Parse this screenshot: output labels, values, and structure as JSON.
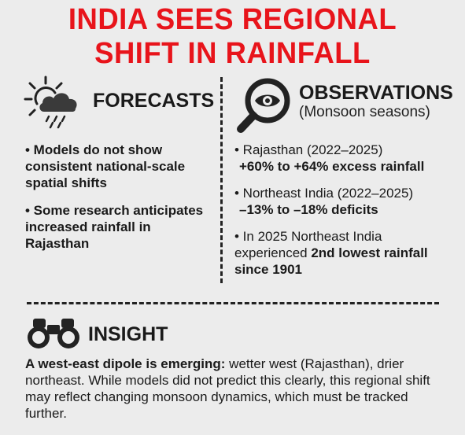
{
  "title": {
    "line1": "INDIA SEES REGIONAL",
    "line2": "SHIFT IN RAINFALL"
  },
  "forecasts": {
    "heading": "FORECASTS",
    "icon": "weather-sun-cloud-rain-icon",
    "items": [
      "• Models do not show consistent national-scale spatial shifts",
      "• Some research anticipates increased rainfall in Rajasthan"
    ]
  },
  "observations": {
    "heading": "OBSERVATIONS",
    "subheading": "(Monsoon seasons)",
    "icon": "magnifying-glass-eye-icon",
    "items": [
      {
        "text": "• Rajasthan (2022–2025)",
        "detail": "+60% to +64% excess rainfall"
      },
      {
        "text": "• Northeast India (2022–2025)",
        "detail": "–13% to –18% deficits"
      },
      {
        "prefix": "• In 2025 Northeast India experienced ",
        "bold": "2nd lowest rainfall since 1901"
      }
    ]
  },
  "insight": {
    "heading": "INSIGHT",
    "icon": "binoculars-icon",
    "lead": "A west-east dipole is emerging:",
    "body": " wetter west (Rajasthan), drier northeast. While models did not predict this clearly, this regional shift may reflect changing monsoon dynamics, which must be tracked further."
  },
  "colors": {
    "accent": "#e8141b",
    "text": "#1a1a1a",
    "background": "#ececec"
  }
}
